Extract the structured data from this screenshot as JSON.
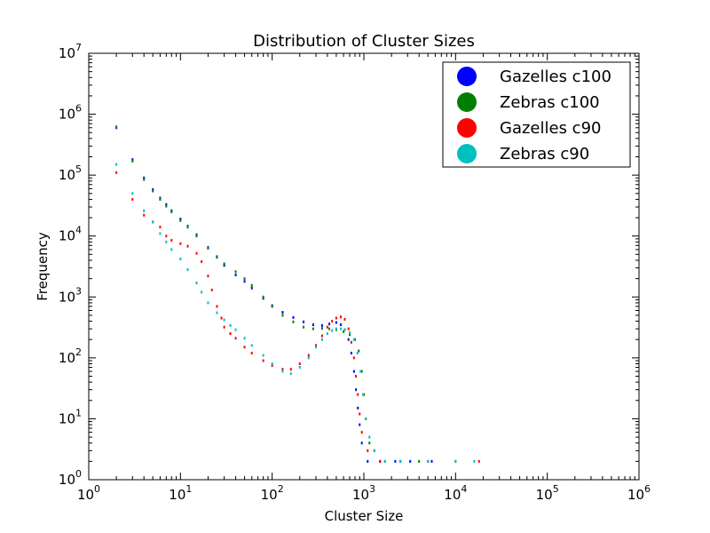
{
  "chart_data": {
    "type": "scatter",
    "title": "Distribution of Cluster Sizes",
    "xlabel": "Cluster Size",
    "ylabel": "Frequency",
    "xscale": "log",
    "yscale": "log",
    "xlim": [
      1,
      1000000
    ],
    "ylim": [
      1,
      10000000
    ],
    "x_ticks": [
      {
        "base": "10",
        "exp": "0"
      },
      {
        "base": "10",
        "exp": "1"
      },
      {
        "base": "10",
        "exp": "2"
      },
      {
        "base": "10",
        "exp": "3"
      },
      {
        "base": "10",
        "exp": "4"
      },
      {
        "base": "10",
        "exp": "5"
      },
      {
        "base": "10",
        "exp": "6"
      }
    ],
    "y_ticks": [
      {
        "base": "10",
        "exp": "0"
      },
      {
        "base": "10",
        "exp": "1"
      },
      {
        "base": "10",
        "exp": "2"
      },
      {
        "base": "10",
        "exp": "3"
      },
      {
        "base": "10",
        "exp": "4"
      },
      {
        "base": "10",
        "exp": "5"
      },
      {
        "base": "10",
        "exp": "6"
      },
      {
        "base": "10",
        "exp": "7"
      }
    ],
    "grid": false,
    "legend_position": "top-right",
    "series": [
      {
        "name": "Gazelles c100",
        "color": "#0000ff",
        "points": [
          [
            2,
            600000
          ],
          [
            3,
            180000
          ],
          [
            4,
            90000
          ],
          [
            5,
            58000
          ],
          [
            6,
            42000
          ],
          [
            7,
            33000
          ],
          [
            8,
            26000
          ],
          [
            10,
            19000
          ],
          [
            12,
            14500
          ],
          [
            15,
            10500
          ],
          [
            20,
            6500
          ],
          [
            25,
            4500
          ],
          [
            30,
            3300
          ],
          [
            40,
            2300
          ],
          [
            50,
            1800
          ],
          [
            60,
            1400
          ],
          [
            80,
            950
          ],
          [
            100,
            720
          ],
          [
            130,
            560
          ],
          [
            170,
            460
          ],
          [
            220,
            390
          ],
          [
            280,
            350
          ],
          [
            350,
            340
          ],
          [
            420,
            360
          ],
          [
            500,
            380
          ],
          [
            560,
            350
          ],
          [
            620,
            290
          ],
          [
            680,
            200
          ],
          [
            730,
            120
          ],
          [
            780,
            60
          ],
          [
            820,
            30
          ],
          [
            860,
            15
          ],
          [
            900,
            8
          ],
          [
            950,
            4
          ],
          [
            1100,
            2
          ],
          [
            1500,
            2
          ],
          [
            2200,
            2
          ],
          [
            3200,
            2
          ],
          [
            5500,
            2
          ]
        ]
      },
      {
        "name": "Zebras c100",
        "color": "#008000",
        "points": [
          [
            2,
            620000
          ],
          [
            3,
            170000
          ],
          [
            4,
            85000
          ],
          [
            5,
            55000
          ],
          [
            6,
            40000
          ],
          [
            7,
            31000
          ],
          [
            8,
            25000
          ],
          [
            10,
            18000
          ],
          [
            12,
            14000
          ],
          [
            15,
            10000
          ],
          [
            20,
            6300
          ],
          [
            25,
            4600
          ],
          [
            30,
            3500
          ],
          [
            40,
            2600
          ],
          [
            50,
            2000
          ],
          [
            60,
            1550
          ],
          [
            80,
            1000
          ],
          [
            100,
            700
          ],
          [
            130,
            500
          ],
          [
            170,
            390
          ],
          [
            220,
            320
          ],
          [
            280,
            300
          ],
          [
            350,
            305
          ],
          [
            420,
            300
          ],
          [
            500,
            290
          ],
          [
            600,
            270
          ],
          [
            700,
            240
          ],
          [
            800,
            200
          ],
          [
            880,
            130
          ],
          [
            950,
            60
          ],
          [
            1000,
            25
          ],
          [
            1050,
            10
          ],
          [
            1150,
            4
          ],
          [
            1300,
            3
          ],
          [
            1700,
            2
          ],
          [
            2500,
            2
          ],
          [
            4000,
            2
          ]
        ]
      },
      {
        "name": "Gazelles c90",
        "color": "#ff0000",
        "points": [
          [
            2,
            110000
          ],
          [
            3,
            40000
          ],
          [
            4,
            22000
          ],
          [
            5,
            17000
          ],
          [
            6,
            14000
          ],
          [
            7,
            10000
          ],
          [
            8,
            8500
          ],
          [
            10,
            7500
          ],
          [
            12,
            6800
          ],
          [
            15,
            5200
          ],
          [
            17,
            3800
          ],
          [
            20,
            2200
          ],
          [
            22,
            1300
          ],
          [
            25,
            700
          ],
          [
            28,
            450
          ],
          [
            30,
            320
          ],
          [
            35,
            250
          ],
          [
            40,
            210
          ],
          [
            50,
            150
          ],
          [
            60,
            120
          ],
          [
            80,
            90
          ],
          [
            100,
            75
          ],
          [
            130,
            65
          ],
          [
            160,
            65
          ],
          [
            200,
            80
          ],
          [
            250,
            110
          ],
          [
            300,
            160
          ],
          [
            350,
            230
          ],
          [
            400,
            320
          ],
          [
            450,
            400
          ],
          [
            500,
            450
          ],
          [
            560,
            470
          ],
          [
            620,
            430
          ],
          [
            680,
            300
          ],
          [
            730,
            180
          ],
          [
            780,
            100
          ],
          [
            820,
            50
          ],
          [
            860,
            25
          ],
          [
            900,
            12
          ],
          [
            950,
            6
          ],
          [
            1100,
            3
          ],
          [
            1500,
            2
          ],
          [
            2500,
            2
          ],
          [
            5000,
            2
          ],
          [
            10000,
            2
          ],
          [
            18000,
            2
          ]
        ]
      },
      {
        "name": "Zebras c90",
        "color": "#00bfbf",
        "points": [
          [
            2,
            150000
          ],
          [
            3,
            50000
          ],
          [
            4,
            26000
          ],
          [
            5,
            17000
          ],
          [
            6,
            11000
          ],
          [
            7,
            8000
          ],
          [
            8,
            6000
          ],
          [
            10,
            4200
          ],
          [
            12,
            2800
          ],
          [
            15,
            1700
          ],
          [
            17,
            1200
          ],
          [
            20,
            800
          ],
          [
            25,
            550
          ],
          [
            30,
            420
          ],
          [
            35,
            340
          ],
          [
            40,
            290
          ],
          [
            50,
            210
          ],
          [
            60,
            160
          ],
          [
            80,
            110
          ],
          [
            100,
            80
          ],
          [
            130,
            60
          ],
          [
            160,
            55
          ],
          [
            200,
            70
          ],
          [
            250,
            100
          ],
          [
            300,
            150
          ],
          [
            350,
            200
          ],
          [
            400,
            250
          ],
          [
            450,
            280
          ],
          [
            500,
            300
          ],
          [
            560,
            300
          ],
          [
            620,
            290
          ],
          [
            700,
            260
          ],
          [
            780,
            200
          ],
          [
            850,
            120
          ],
          [
            920,
            60
          ],
          [
            980,
            25
          ],
          [
            1050,
            10
          ],
          [
            1150,
            5
          ],
          [
            1300,
            3
          ],
          [
            1700,
            2
          ],
          [
            2500,
            2
          ],
          [
            5000,
            2
          ],
          [
            10000,
            2
          ],
          [
            16000,
            2
          ]
        ]
      }
    ]
  }
}
